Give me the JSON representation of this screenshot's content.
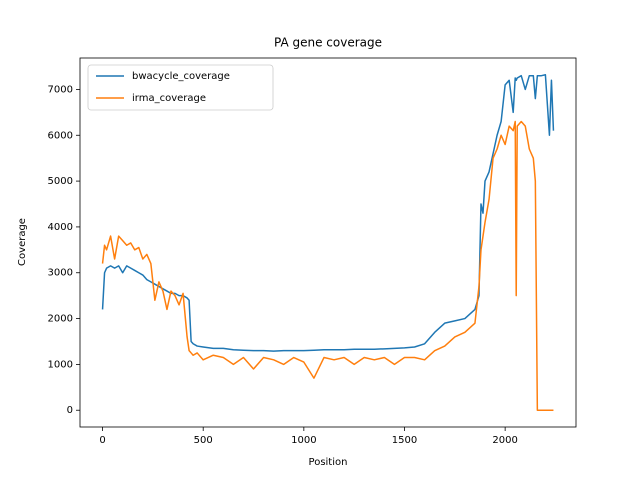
{
  "chart_data": {
    "type": "line",
    "title": "PA gene coverage",
    "x_label": "Position",
    "y_label": "Coverage",
    "x": [
      0,
      10,
      20,
      40,
      60,
      80,
      100,
      120,
      140,
      160,
      180,
      200,
      220,
      240,
      260,
      280,
      300,
      320,
      340,
      360,
      380,
      400,
      420,
      430,
      440,
      450,
      470,
      500,
      550,
      600,
      650,
      700,
      750,
      800,
      850,
      900,
      950,
      1000,
      1050,
      1100,
      1150,
      1200,
      1250,
      1300,
      1350,
      1400,
      1450,
      1500,
      1550,
      1600,
      1650,
      1700,
      1750,
      1800,
      1850,
      1870,
      1880,
      1890,
      1900,
      1920,
      1940,
      1960,
      1980,
      2000,
      2020,
      2040,
      2050,
      2055,
      2060,
      2080,
      2100,
      2120,
      2140,
      2150,
      2160,
      2180,
      2200,
      2220,
      2230,
      2240
    ],
    "series": [
      {
        "name": "bwacycle_coverage",
        "color": "#1f77b4",
        "values": [
          2200,
          3000,
          3100,
          3150,
          3100,
          3150,
          3000,
          3150,
          3100,
          3050,
          3000,
          2950,
          2850,
          2800,
          2750,
          2700,
          2650,
          2600,
          2550,
          2550,
          2500,
          2500,
          2450,
          2400,
          1500,
          1450,
          1400,
          1380,
          1350,
          1350,
          1320,
          1310,
          1300,
          1300,
          1290,
          1300,
          1300,
          1300,
          1310,
          1320,
          1320,
          1320,
          1330,
          1330,
          1330,
          1340,
          1350,
          1360,
          1380,
          1450,
          1700,
          1900,
          1950,
          2000,
          2200,
          2500,
          4500,
          4300,
          5000,
          5200,
          5600,
          6000,
          6300,
          7100,
          7200,
          6500,
          7250,
          7200,
          7250,
          7300,
          7000,
          7300,
          7300,
          6800,
          7300,
          7300,
          7320,
          6000,
          7200,
          6100
        ]
      },
      {
        "name": "irma_coverage",
        "color": "#ff7f0e",
        "values": [
          3200,
          3600,
          3500,
          3800,
          3300,
          3800,
          3700,
          3600,
          3650,
          3500,
          3550,
          3300,
          3400,
          3200,
          2400,
          2800,
          2600,
          2200,
          2600,
          2500,
          2300,
          2550,
          1600,
          1300,
          1250,
          1200,
          1250,
          1100,
          1200,
          1150,
          1000,
          1150,
          900,
          1150,
          1100,
          1000,
          1150,
          1050,
          700,
          1150,
          1100,
          1150,
          1000,
          1150,
          1100,
          1150,
          1000,
          1150,
          1150,
          1100,
          1300,
          1400,
          1600,
          1700,
          1900,
          2700,
          3500,
          3800,
          4100,
          4600,
          5500,
          5700,
          6000,
          5800,
          6200,
          6100,
          6300,
          2500,
          6200,
          6300,
          6200,
          5700,
          5500,
          5000,
          0,
          0,
          0,
          0,
          0,
          0
        ]
      }
    ],
    "xlim": [
      -112,
      2352
    ],
    "ylim": [
      -366,
      7686
    ],
    "xticks": [
      0,
      500,
      1000,
      1500,
      2000
    ],
    "yticks": [
      0,
      1000,
      2000,
      3000,
      4000,
      5000,
      6000,
      7000
    ],
    "legend": "upper left",
    "grid": false
  }
}
